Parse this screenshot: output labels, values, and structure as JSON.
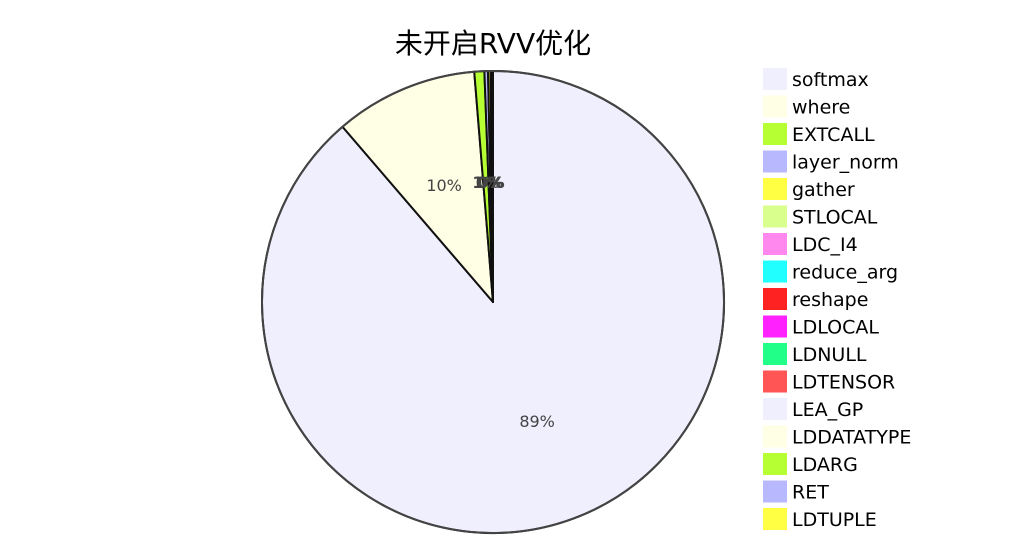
{
  "chart_data": {
    "type": "pie",
    "title": "未开启RVV优化",
    "legend_position": "right",
    "slices": [
      {
        "label": "softmax",
        "value": 88.7,
        "color": "#efeffe",
        "display": "89%"
      },
      {
        "label": "where",
        "value": 10.0,
        "color": "#ffffe6",
        "display": "10%"
      },
      {
        "label": "EXTCALL",
        "value": 0.7,
        "color": "#b5ff33",
        "display": "1%"
      },
      {
        "label": "layer_norm",
        "value": 0.25,
        "color": "#b8b8fe",
        "display": "0%"
      },
      {
        "label": "gather",
        "value": 0.18,
        "color": "#ffff44",
        "display": "0%"
      },
      {
        "label": "STLOCAL",
        "value": 0.06,
        "color": "#d9ff8c",
        "display": ""
      },
      {
        "label": "LDC_I4",
        "value": 0.03,
        "color": "#ff88ee",
        "display": ""
      },
      {
        "label": "reduce_arg",
        "value": 0.02,
        "color": "#22ffff",
        "display": ""
      },
      {
        "label": "reshape",
        "value": 0.015,
        "color": "#ff2222",
        "display": ""
      },
      {
        "label": "LDLOCAL",
        "value": 0.01,
        "color": "#ff22ff",
        "display": ""
      },
      {
        "label": "LDNULL",
        "value": 0.008,
        "color": "#22ff88",
        "display": ""
      },
      {
        "label": "LDTENSOR",
        "value": 0.006,
        "color": "#ff5555",
        "display": ""
      },
      {
        "label": "LEA_GP",
        "value": 0.005,
        "color": "#efeffe",
        "display": ""
      },
      {
        "label": "LDDATATYPE",
        "value": 0.004,
        "color": "#ffffe6",
        "display": ""
      },
      {
        "label": "LDARG",
        "value": 0.003,
        "color": "#b5ff33",
        "display": ""
      },
      {
        "label": "RET",
        "value": 0.002,
        "color": "#b8b8fe",
        "display": ""
      },
      {
        "label": "LDTUPLE",
        "value": 0.001,
        "color": "#ffff44",
        "display": ""
      }
    ]
  }
}
